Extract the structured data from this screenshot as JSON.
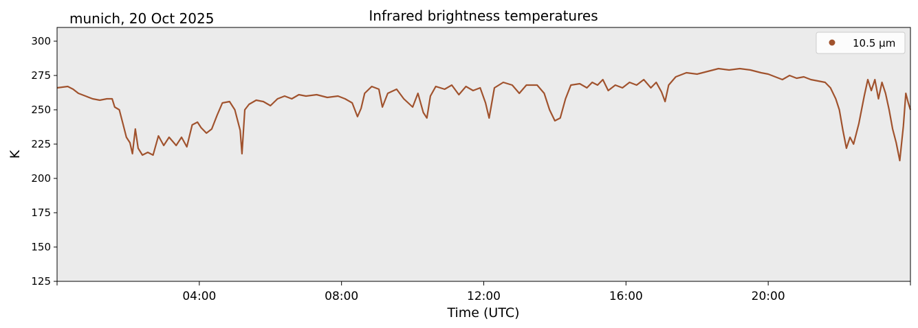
{
  "chart_data": {
    "type": "line",
    "title": "Infrared brightness temperatures",
    "subtitle": "munich, 20 Oct 2025",
    "xlabel": "Time (UTC)",
    "ylabel": "K",
    "xlim_hours": [
      0,
      24
    ],
    "ylim": [
      125,
      310
    ],
    "x_ticks": [
      {
        "hour": 4,
        "label": "04:00"
      },
      {
        "hour": 8,
        "label": "08:00"
      },
      {
        "hour": 12,
        "label": "12:00"
      },
      {
        "hour": 16,
        "label": "16:00"
      },
      {
        "hour": 20,
        "label": "20:00"
      }
    ],
    "y_ticks": [
      125,
      150,
      175,
      200,
      225,
      250,
      275,
      300
    ],
    "grid": false,
    "legend_position": "top-right",
    "plot_background": "#ebebeb",
    "series": [
      {
        "name": "10.5 µm",
        "color": "#a0522d",
        "points": [
          [
            0.0,
            266
          ],
          [
            0.3,
            267
          ],
          [
            0.45,
            265
          ],
          [
            0.6,
            262
          ],
          [
            0.8,
            260
          ],
          [
            1.0,
            258
          ],
          [
            1.2,
            257
          ],
          [
            1.4,
            258
          ],
          [
            1.55,
            258
          ],
          [
            1.62,
            252
          ],
          [
            1.75,
            250
          ],
          [
            1.85,
            240
          ],
          [
            1.95,
            230
          ],
          [
            2.05,
            226
          ],
          [
            2.12,
            218
          ],
          [
            2.2,
            236
          ],
          [
            2.28,
            222
          ],
          [
            2.4,
            217
          ],
          [
            2.55,
            219
          ],
          [
            2.7,
            217
          ],
          [
            2.85,
            231
          ],
          [
            3.0,
            224
          ],
          [
            3.15,
            230
          ],
          [
            3.35,
            224
          ],
          [
            3.5,
            230
          ],
          [
            3.65,
            223
          ],
          [
            3.8,
            239
          ],
          [
            3.95,
            241
          ],
          [
            4.05,
            237
          ],
          [
            4.2,
            233
          ],
          [
            4.35,
            236
          ],
          [
            4.5,
            246
          ],
          [
            4.65,
            255
          ],
          [
            4.85,
            256
          ],
          [
            5.0,
            250
          ],
          [
            5.15,
            235
          ],
          [
            5.2,
            218
          ],
          [
            5.28,
            250
          ],
          [
            5.4,
            254
          ],
          [
            5.6,
            257
          ],
          [
            5.8,
            256
          ],
          [
            6.0,
            253
          ],
          [
            6.2,
            258
          ],
          [
            6.4,
            260
          ],
          [
            6.6,
            258
          ],
          [
            6.8,
            261
          ],
          [
            7.0,
            260
          ],
          [
            7.3,
            261
          ],
          [
            7.6,
            259
          ],
          [
            7.9,
            260
          ],
          [
            8.1,
            258
          ],
          [
            8.3,
            255
          ],
          [
            8.45,
            245
          ],
          [
            8.55,
            251
          ],
          [
            8.65,
            262
          ],
          [
            8.85,
            267
          ],
          [
            9.05,
            265
          ],
          [
            9.15,
            252
          ],
          [
            9.3,
            262
          ],
          [
            9.55,
            265
          ],
          [
            9.75,
            258
          ],
          [
            10.0,
            252
          ],
          [
            10.15,
            262
          ],
          [
            10.3,
            248
          ],
          [
            10.4,
            244
          ],
          [
            10.5,
            260
          ],
          [
            10.65,
            267
          ],
          [
            10.9,
            265
          ],
          [
            11.1,
            268
          ],
          [
            11.3,
            261
          ],
          [
            11.5,
            267
          ],
          [
            11.7,
            264
          ],
          [
            11.9,
            266
          ],
          [
            12.05,
            255
          ],
          [
            12.15,
            244
          ],
          [
            12.3,
            266
          ],
          [
            12.55,
            270
          ],
          [
            12.8,
            268
          ],
          [
            13.0,
            262
          ],
          [
            13.2,
            268
          ],
          [
            13.5,
            268
          ],
          [
            13.7,
            262
          ],
          [
            13.85,
            250
          ],
          [
            14.0,
            242
          ],
          [
            14.15,
            244
          ],
          [
            14.3,
            258
          ],
          [
            14.45,
            268
          ],
          [
            14.7,
            269
          ],
          [
            14.9,
            266
          ],
          [
            15.05,
            270
          ],
          [
            15.2,
            268
          ],
          [
            15.35,
            272
          ],
          [
            15.5,
            264
          ],
          [
            15.7,
            268
          ],
          [
            15.9,
            266
          ],
          [
            16.1,
            270
          ],
          [
            16.3,
            268
          ],
          [
            16.5,
            272
          ],
          [
            16.7,
            266
          ],
          [
            16.85,
            270
          ],
          [
            17.0,
            263
          ],
          [
            17.1,
            256
          ],
          [
            17.2,
            268
          ],
          [
            17.4,
            274
          ],
          [
            17.7,
            277
          ],
          [
            18.0,
            276
          ],
          [
            18.3,
            278
          ],
          [
            18.6,
            280
          ],
          [
            18.9,
            279
          ],
          [
            19.2,
            280
          ],
          [
            19.5,
            279
          ],
          [
            19.8,
            277
          ],
          [
            20.0,
            276
          ],
          [
            20.2,
            274
          ],
          [
            20.4,
            272
          ],
          [
            20.6,
            275
          ],
          [
            20.8,
            273
          ],
          [
            21.0,
            274
          ],
          [
            21.2,
            272
          ],
          [
            21.4,
            271
          ],
          [
            21.6,
            270
          ],
          [
            21.75,
            266
          ],
          [
            21.9,
            258
          ],
          [
            22.0,
            250
          ],
          [
            22.1,
            235
          ],
          [
            22.2,
            222
          ],
          [
            22.3,
            230
          ],
          [
            22.4,
            225
          ],
          [
            22.55,
            240
          ],
          [
            22.7,
            260
          ],
          [
            22.8,
            272
          ],
          [
            22.9,
            264
          ],
          [
            23.0,
            272
          ],
          [
            23.1,
            258
          ],
          [
            23.2,
            270
          ],
          [
            23.3,
            262
          ],
          [
            23.4,
            250
          ],
          [
            23.5,
            236
          ],
          [
            23.6,
            226
          ],
          [
            23.7,
            213
          ],
          [
            23.8,
            238
          ],
          [
            23.87,
            262
          ],
          [
            23.94,
            255
          ],
          [
            24.0,
            250
          ]
        ]
      }
    ]
  }
}
